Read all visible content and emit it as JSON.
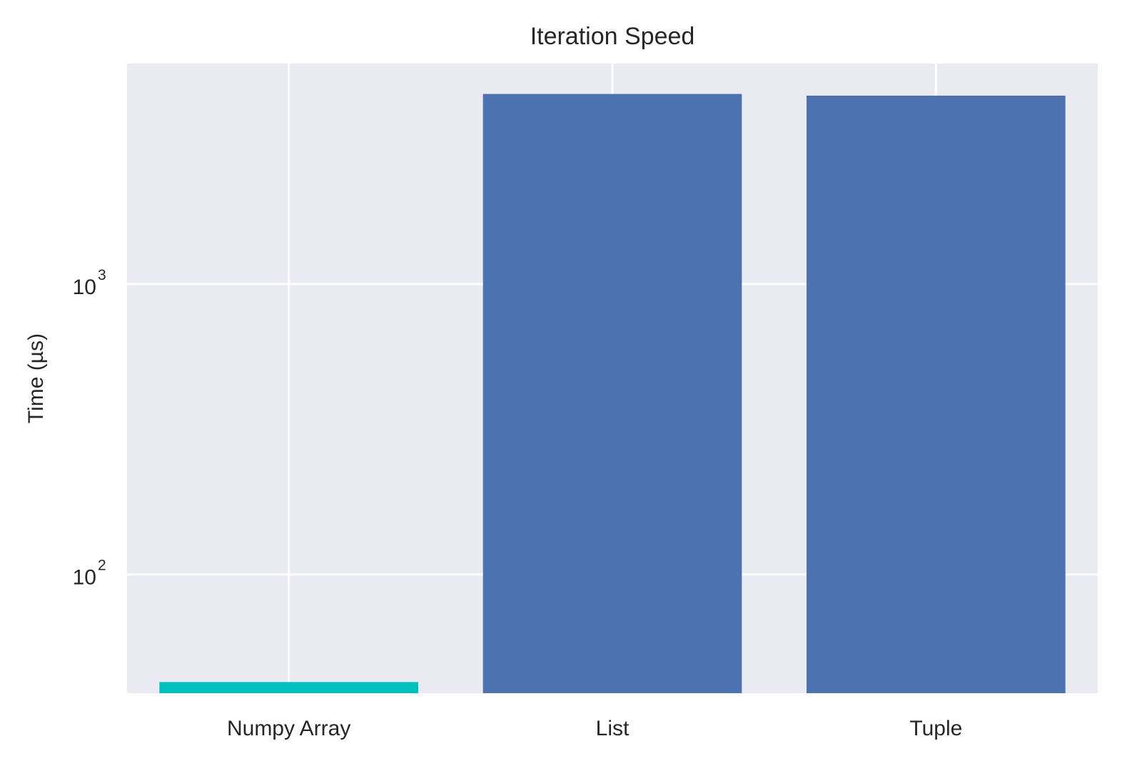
{
  "chart_data": {
    "type": "bar",
    "title": "Iteration Speed",
    "xlabel": "",
    "ylabel": "Time (µs)",
    "yscale": "log",
    "ylim": [
      39,
      5740
    ],
    "categories": [
      "Numpy Array",
      "List",
      "Tuple"
    ],
    "values": [
      42.6,
      4510,
      4450
    ],
    "colors": [
      "#00bfbf",
      "#4c72b0",
      "#4c72b0"
    ],
    "yticks": [
      {
        "base": "10",
        "exp": "2",
        "value": 100
      },
      {
        "base": "10",
        "exp": "3",
        "value": 1000
      }
    ],
    "grid": true,
    "background": "#eaeaf2",
    "legend": null
  }
}
